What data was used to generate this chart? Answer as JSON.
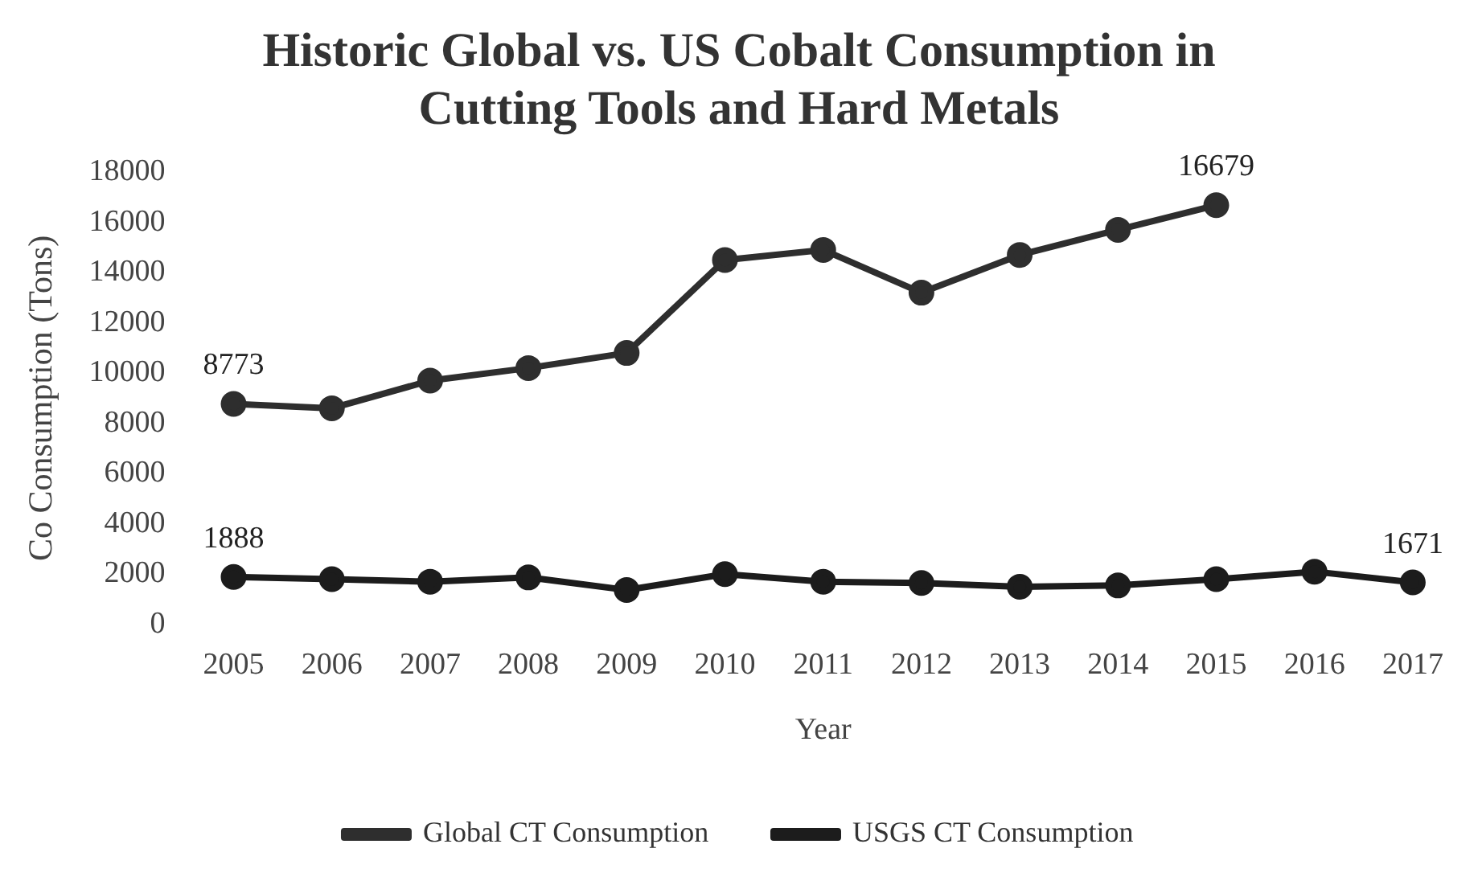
{
  "chart_data": {
    "type": "line",
    "title": "Historic Global vs. US Cobalt Consumption in Cutting Tools and Hard Metals",
    "xlabel": "Year",
    "ylabel": "Co Consumption (Tons)",
    "categories": [
      "2005",
      "2006",
      "2007",
      "2008",
      "2009",
      "2010",
      "2011",
      "2012",
      "2013",
      "2014",
      "2015",
      "2016",
      "2017"
    ],
    "ylim": [
      0,
      18000
    ],
    "yticks": [
      0,
      2000,
      4000,
      6000,
      8000,
      10000,
      12000,
      14000,
      16000,
      18000
    ],
    "series": [
      {
        "name": "Global CT Consumption",
        "color": "#2e2e2e",
        "values": [
          8773,
          8600,
          9700,
          10200,
          10800,
          14500,
          14900,
          13200,
          14700,
          15700,
          16679,
          null,
          null
        ],
        "value_labels": [
          "8773",
          null,
          null,
          null,
          null,
          null,
          null,
          null,
          null,
          null,
          "16679",
          null,
          null
        ]
      },
      {
        "name": "USGS CT Consumption",
        "color": "#1c1c1c",
        "values": [
          1888,
          1800,
          1700,
          1870,
          1370,
          2000,
          1700,
          1650,
          1500,
          1550,
          1800,
          2100,
          1671
        ],
        "value_labels": [
          "1888",
          null,
          null,
          null,
          null,
          null,
          null,
          null,
          null,
          null,
          null,
          null,
          "1671"
        ]
      }
    ],
    "marker": "circle",
    "line_style": "solid",
    "grid": false,
    "legend": "bottom"
  }
}
